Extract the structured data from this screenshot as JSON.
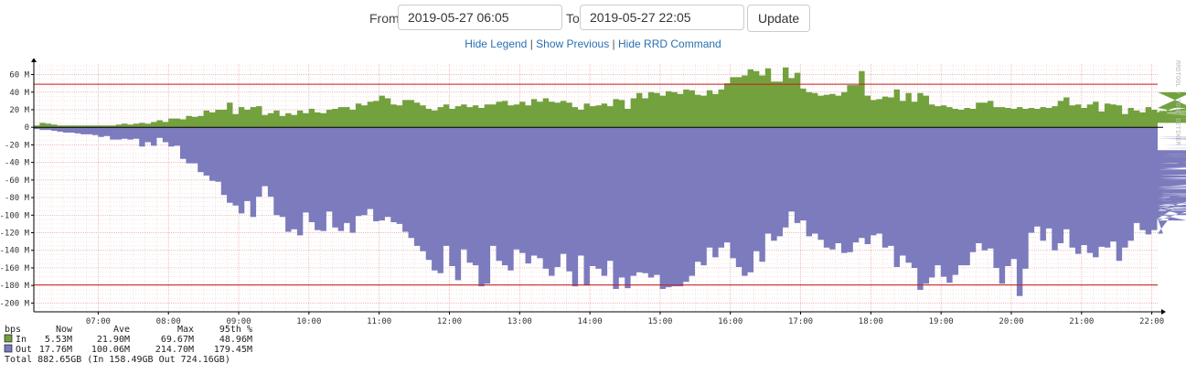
{
  "controls": {
    "from_label": "From",
    "from_value": "2019-05-27 06:05",
    "to_label": "To",
    "to_value": "2019-05-27 22:05",
    "update_label": "Update"
  },
  "links": {
    "hide_legend": "Hide Legend",
    "show_previous": "Show Previous",
    "hide_rrd": "Hide RRD Command",
    "separator": "|"
  },
  "chart_data": {
    "type": "area",
    "watermark": "RRDTOOL / TOBI OETIKER",
    "y_ticks": [
      60,
      40,
      20,
      0,
      -20,
      -40,
      -60,
      -80,
      -100,
      -120,
      -140,
      -160,
      -180,
      -200
    ],
    "y_tick_labels": [
      "60 M",
      "40 M",
      "20 M",
      "0",
      "-20 M",
      "-40 M",
      "-60 M",
      "-80 M",
      "-100 M",
      "-120 M",
      "-140 M",
      "-160 M",
      "-180 M",
      "-200 M"
    ],
    "x_ticks": [
      "07:00",
      "08:00",
      "09:00",
      "10:00",
      "11:00",
      "12:00",
      "13:00",
      "14:00",
      "15:00",
      "16:00",
      "17:00",
      "18:00",
      "19:00",
      "20:00",
      "21:00",
      "22:00"
    ],
    "x_start_hour": 6.0833,
    "x_end_hour": 22.0833,
    "ylim": [
      -210,
      72
    ],
    "percentile_lines": [
      48.96,
      -179.45
    ],
    "x_step_hours": 0.0833,
    "series": [
      {
        "name": "In",
        "color": "#72a13e",
        "values": [
          2,
          5,
          4,
          3,
          2,
          2,
          2,
          2,
          2,
          2,
          2,
          2,
          2,
          2,
          3,
          4,
          3,
          4,
          5,
          4,
          6,
          8,
          6,
          10,
          10,
          9,
          13,
          12,
          13,
          19,
          17,
          20,
          20,
          28,
          15,
          23,
          20,
          23,
          24,
          14,
          16,
          19,
          13,
          16,
          14,
          19,
          16,
          21,
          17,
          16,
          20,
          21,
          23,
          23,
          20,
          27,
          25,
          29,
          30,
          36,
          33,
          26,
          25,
          31,
          31,
          28,
          25,
          21,
          19,
          23,
          26,
          21,
          24,
          26,
          23,
          25,
          22,
          26,
          26,
          29,
          30,
          25,
          26,
          29,
          25,
          32,
          29,
          33,
          29,
          28,
          30,
          28,
          23,
          20,
          27,
          24,
          25,
          27,
          24,
          32,
          31,
          21,
          33,
          39,
          33,
          40,
          39,
          36,
          41,
          40,
          38,
          43,
          42,
          37,
          36,
          42,
          38,
          43,
          50,
          57,
          57,
          59,
          66,
          64,
          59,
          67,
          52,
          52,
          68,
          56,
          62,
          44,
          40,
          39,
          36,
          37,
          38,
          36,
          40,
          48,
          48,
          64,
          36,
          31,
          32,
          35,
          34,
          43,
          30,
          39,
          29,
          39,
          36,
          26,
          24,
          25,
          23,
          21,
          20,
          22,
          21,
          28,
          28,
          30,
          23,
          23,
          22,
          21,
          23,
          21,
          22,
          21,
          23,
          22,
          24,
          30,
          34,
          25,
          26,
          22,
          26,
          29,
          18,
          27,
          26,
          25,
          15,
          22,
          19,
          17,
          23,
          20,
          17,
          19,
          16,
          22,
          17,
          22,
          40,
          19,
          13,
          15,
          15,
          17,
          17,
          13,
          17,
          17,
          16,
          18,
          15,
          14,
          13,
          17,
          16,
          15,
          15,
          12,
          19,
          16,
          16,
          16,
          15,
          14,
          17,
          18,
          11,
          14,
          16,
          11,
          15,
          18,
          13,
          14,
          13,
          14,
          12,
          11,
          13,
          13,
          12,
          13,
          11,
          13,
          12,
          12,
          11,
          12,
          12,
          14,
          11,
          13,
          10,
          12,
          11,
          13,
          11,
          11,
          10,
          12,
          15,
          12,
          14,
          18,
          17,
          15,
          16,
          14,
          10,
          5
        ]
      },
      {
        "name": "Out",
        "color": "#7b7bbd",
        "values": [
          -2,
          -3,
          -3,
          -4,
          -5,
          -6,
          -6,
          -7,
          -8,
          -8,
          -9,
          -11,
          -10,
          -14,
          -14,
          -13,
          -14,
          -13,
          -22,
          -17,
          -21,
          -12,
          -17,
          -22,
          -21,
          -36,
          -41,
          -41,
          -51,
          -55,
          -61,
          -62,
          -77,
          -86,
          -89,
          -98,
          -84,
          -102,
          -79,
          -67,
          -79,
          -100,
          -102,
          -119,
          -116,
          -123,
          -97,
          -108,
          -117,
          -118,
          -96,
          -114,
          -118,
          -109,
          -120,
          -101,
          -100,
          -93,
          -107,
          -106,
          -102,
          -108,
          -110,
          -119,
          -126,
          -135,
          -141,
          -151,
          -163,
          -166,
          -135,
          -158,
          -174,
          -139,
          -154,
          -157,
          -181,
          -178,
          -135,
          -152,
          -157,
          -163,
          -139,
          -143,
          -155,
          -146,
          -149,
          -161,
          -169,
          -159,
          -144,
          -164,
          -181,
          -146,
          -180,
          -158,
          -161,
          -169,
          -152,
          -184,
          -171,
          -183,
          -169,
          -165,
          -166,
          -171,
          -168,
          -184,
          -182,
          -181,
          -181,
          -176,
          -169,
          -153,
          -157,
          -137,
          -148,
          -137,
          -131,
          -149,
          -159,
          -169,
          -165,
          -141,
          -153,
          -121,
          -129,
          -124,
          -114,
          -96,
          -109,
          -106,
          -124,
          -121,
          -128,
          -137,
          -139,
          -132,
          -143,
          -142,
          -131,
          -126,
          -133,
          -123,
          -121,
          -137,
          -135,
          -159,
          -146,
          -154,
          -160,
          -185,
          -178,
          -171,
          -157,
          -170,
          -177,
          -168,
          -157,
          -157,
          -142,
          -132,
          -140,
          -138,
          -160,
          -178,
          -158,
          -150,
          -192,
          -161,
          -120,
          -113,
          -129,
          -115,
          -140,
          -132,
          -116,
          -137,
          -144,
          -134,
          -143,
          -148,
          -136,
          -137,
          -130,
          -152,
          -137,
          -129,
          -109,
          -117,
          -122,
          -117,
          -104,
          -121,
          -104,
          -92,
          -99,
          -106,
          -94,
          -81,
          -91,
          -95,
          -81,
          -81,
          -89,
          -77,
          -95,
          -94,
          -87,
          -86,
          -100,
          -91,
          -79,
          -83,
          -82,
          -73,
          -79,
          -81,
          -84,
          -80,
          -80,
          -70,
          -79,
          -80,
          -80,
          -82,
          -74,
          -79,
          -75,
          -67,
          -70,
          -60,
          -58,
          -50,
          -52,
          -53,
          -59,
          -55,
          -47,
          -46,
          -39,
          -42,
          -41,
          -41,
          -40,
          -39,
          -67,
          -77,
          -68,
          -41,
          -32,
          -34,
          -32,
          -30,
          -32,
          -29,
          -34,
          -30,
          -31,
          -27,
          -31,
          -40,
          -48,
          -23,
          -24,
          -20,
          -15,
          -13,
          -14,
          -12,
          -13,
          -11,
          -12,
          -13,
          -11,
          -20,
          -12,
          -13,
          -26
        ]
      }
    ],
    "legend": {
      "unit": "bps",
      "headers": [
        "Now",
        "Ave",
        "Max",
        "95th %"
      ],
      "rows": [
        {
          "name": "In",
          "color": "#72a13e",
          "now": "5.53M",
          "ave": "21.90M",
          "max": "69.67M",
          "p95": "48.96M"
        },
        {
          "name": "Out",
          "color": "#7b7bbd",
          "now": "17.76M",
          "ave": "100.06M",
          "max": "214.70M",
          "p95": "179.45M"
        }
      ],
      "total": "Total 882.65GB  (In 158.49GB  Out 724.16GB)"
    }
  }
}
